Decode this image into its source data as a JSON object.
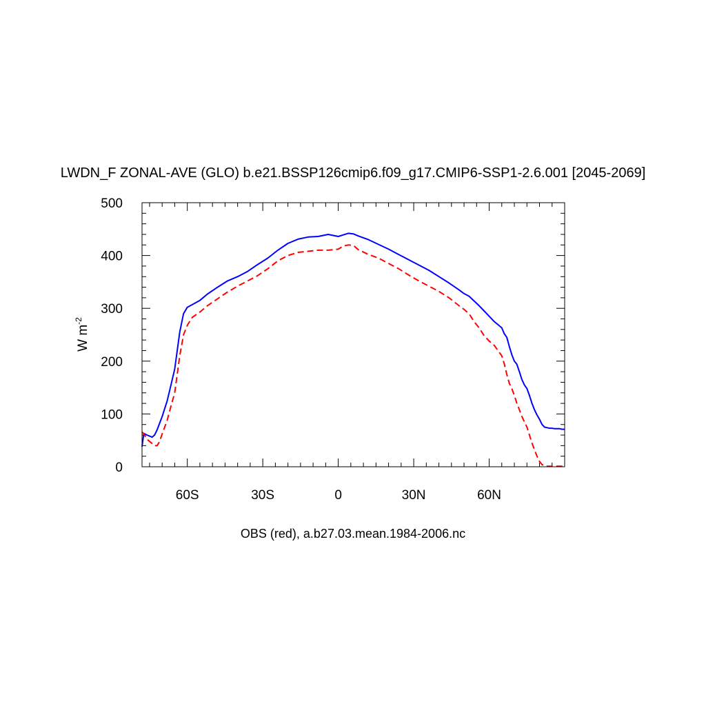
{
  "chart_data": {
    "type": "line",
    "title": "LWDN_F ZONAL-AVE (GLO) b.e21.BSSP126cmip6.f09_g17.CMIP6-SSP1-2.6.001 [2045-2069]",
    "caption": "OBS (red), a.b27.03.mean.1984-2006.nc",
    "ylabel": "W m",
    "ylabel_exponent": "-2",
    "xlim": [
      -78,
      90
    ],
    "ylim": [
      0,
      500
    ],
    "x_ticks": [
      {
        "value": -60,
        "label": "60S"
      },
      {
        "value": -30,
        "label": "30S"
      },
      {
        "value": 0,
        "label": "0"
      },
      {
        "value": 30,
        "label": "30N"
      },
      {
        "value": 60,
        "label": "60N"
      }
    ],
    "y_ticks": [
      {
        "value": 0,
        "label": "0"
      },
      {
        "value": 100,
        "label": "100"
      },
      {
        "value": 200,
        "label": "200"
      },
      {
        "value": 300,
        "label": "300"
      },
      {
        "value": 400,
        "label": "400"
      },
      {
        "value": 500,
        "label": "500"
      }
    ],
    "grid": false,
    "series": [
      {
        "color": "#0000ff",
        "dash": "solid",
        "x": [
          -78,
          -77.3,
          -76,
          -74,
          -73,
          -72,
          -70,
          -68,
          -66.5,
          -65,
          -63,
          -61.5,
          -60,
          -58,
          -55,
          -52,
          -48,
          -44,
          -40,
          -36,
          -32,
          -28,
          -24,
          -20,
          -16,
          -12,
          -8,
          -4,
          0,
          2,
          4,
          6,
          8,
          12,
          16,
          20,
          24,
          28,
          32,
          36,
          40,
          44,
          48,
          50,
          52,
          54,
          56,
          58,
          60,
          62,
          63.5,
          65,
          66,
          67,
          68,
          69,
          70,
          71,
          72,
          73,
          74,
          75,
          76,
          77,
          78,
          79,
          80,
          81,
          82,
          83,
          84,
          85,
          86,
          87,
          88,
          89,
          90
        ],
        "y": [
          38,
          63,
          60,
          56,
          60,
          70,
          95,
          125,
          155,
          185,
          255,
          290,
          302,
          307,
          315,
          327,
          340,
          352,
          360,
          370,
          383,
          395,
          410,
          423,
          431,
          435,
          436,
          440,
          436,
          439,
          442,
          441,
          437,
          430,
          421,
          412,
          402,
          392,
          382,
          372,
          360,
          348,
          335,
          328,
          323,
          314,
          305,
          295,
          285,
          275,
          269,
          263,
          252,
          245,
          228,
          212,
          200,
          194,
          180,
          165,
          155,
          148,
          135,
          120,
          108,
          98,
          90,
          80,
          75,
          74,
          73,
          73,
          72,
          72,
          72,
          71,
          71
        ]
      },
      {
        "color": "#ff0000",
        "dash": "dashed",
        "x": [
          -78,
          -77.3,
          -76,
          -74,
          -73,
          -72,
          -71,
          -70,
          -68,
          -66.5,
          -65,
          -63,
          -61.5,
          -60,
          -58,
          -55,
          -52,
          -48,
          -44,
          -40,
          -36,
          -32,
          -28,
          -24,
          -20,
          -16,
          -12,
          -8,
          -4,
          0,
          2,
          4,
          6,
          8,
          12,
          16,
          20,
          24,
          28,
          32,
          36,
          40,
          44,
          48,
          50,
          52,
          54,
          56,
          58,
          60,
          62,
          63.5,
          65,
          66,
          67,
          68,
          69,
          70,
          71,
          72,
          73,
          74,
          75,
          76,
          77,
          78,
          79,
          80,
          81,
          82,
          83,
          84,
          85,
          86,
          87,
          88,
          89,
          90
        ],
        "y": [
          66,
          62,
          52,
          44,
          40,
          40,
          48,
          62,
          88,
          115,
          140,
          210,
          250,
          268,
          283,
          293,
          305,
          318,
          331,
          342,
          352,
          362,
          375,
          390,
          400,
          406,
          408,
          410,
          410,
          412,
          418,
          420,
          419,
          411,
          402,
          395,
          385,
          375,
          363,
          352,
          342,
          332,
          320,
          305,
          298,
          290,
          275,
          263,
          248,
          238,
          230,
          220,
          210,
          195,
          175,
          158,
          148,
          135,
          120,
          108,
          95,
          85,
          75,
          60,
          45,
          32,
          20,
          10,
          4,
          2,
          1,
          1,
          1,
          1,
          1,
          1,
          1,
          1
        ]
      }
    ]
  }
}
